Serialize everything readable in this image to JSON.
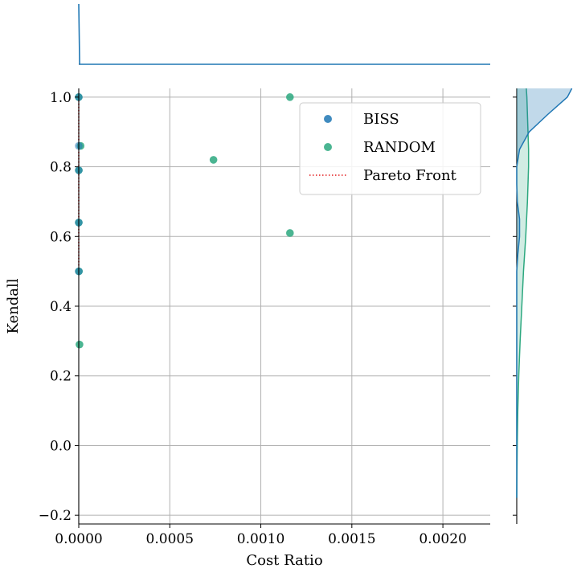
{
  "chart_data": {
    "type": "scatter",
    "xlabel": "Cost Ratio",
    "ylabel": "Kendall",
    "xlim": [
      0,
      0.00226
    ],
    "ylim": [
      -0.225,
      1.025
    ],
    "xticks": [
      0,
      0.0005,
      0.001,
      0.0015,
      0.002
    ],
    "xtick_labels": [
      "0.0000",
      "0.0005",
      "0.0010",
      "0.0015",
      "0.0020"
    ],
    "yticks": [
      -0.2,
      0.0,
      0.2,
      0.4,
      0.6,
      0.8,
      1.0
    ],
    "ytick_labels": [
      "−0.2",
      "0.0",
      "0.2",
      "0.4",
      "0.6",
      "0.8",
      "1.0"
    ],
    "grid": true,
    "legend_position": "top-right",
    "series": [
      {
        "name": "BISS",
        "color": "#1f77b4",
        "points": [
          {
            "x": 0.0,
            "y": 1.0
          },
          {
            "x": 0.0,
            "y": 0.86
          },
          {
            "x": 0.0,
            "y": 0.79
          },
          {
            "x": 0.0,
            "y": 0.64
          },
          {
            "x": 0.0,
            "y": 0.5
          }
        ]
      },
      {
        "name": "RANDOM",
        "color": "#2ca87f",
        "points": [
          {
            "x": 0.0,
            "y": 1.0
          },
          {
            "x": 1e-05,
            "y": 0.86
          },
          {
            "x": 5e-07,
            "y": 0.79
          },
          {
            "x": 2e-07,
            "y": 0.64
          },
          {
            "x": 1e-06,
            "y": 0.5
          },
          {
            "x": 4e-06,
            "y": 0.29
          },
          {
            "x": 0.00074,
            "y": 0.82
          },
          {
            "x": 0.00116,
            "y": 1.0
          },
          {
            "x": 0.00116,
            "y": 0.61
          }
        ]
      },
      {
        "name": "Pareto Front",
        "color": "#e31a1c",
        "style": "dotted",
        "points": [
          {
            "x": 0.0,
            "y": 1.0
          },
          {
            "x": 0.0,
            "y": 0.5
          }
        ]
      }
    ],
    "marginal_x": {
      "type": "density",
      "series": "BISS",
      "description_values": [
        {
          "x": 0.0,
          "density": 1.0
        },
        {
          "x": 5e-06,
          "density": 0.0
        },
        {
          "x": 0.00226,
          "density": 0.0
        }
      ]
    },
    "marginal_y": {
      "type": "density",
      "series": [
        {
          "name": "BISS",
          "fill": true,
          "values": [
            {
              "y": 1.025,
              "density": 0.98
            },
            {
              "y": 1.0,
              "density": 0.9
            },
            {
              "y": 0.95,
              "density": 0.55
            },
            {
              "y": 0.9,
              "density": 0.22
            },
            {
              "y": 0.85,
              "density": 0.05
            },
            {
              "y": 0.8,
              "density": 0.0
            },
            {
              "y": 0.75,
              "density": 0.0
            },
            {
              "y": 0.7,
              "density": 0.01
            },
            {
              "y": 0.65,
              "density": 0.05
            },
            {
              "y": 0.6,
              "density": 0.05
            },
            {
              "y": 0.55,
              "density": 0.02
            },
            {
              "y": 0.5,
              "density": 0.0
            },
            {
              "y": 0.4,
              "density": 0.0
            },
            {
              "y": 0.2,
              "density": 0.0
            },
            {
              "y": 0.0,
              "density": 0.0
            },
            {
              "y": -0.15,
              "density": 0.0
            }
          ]
        },
        {
          "name": "RANDOM",
          "fill": true,
          "values": [
            {
              "y": 1.025,
              "density": 0.17
            },
            {
              "y": 1.0,
              "density": 0.18
            },
            {
              "y": 0.95,
              "density": 0.19
            },
            {
              "y": 0.9,
              "density": 0.2
            },
            {
              "y": 0.85,
              "density": 0.21
            },
            {
              "y": 0.8,
              "density": 0.21
            },
            {
              "y": 0.75,
              "density": 0.2
            },
            {
              "y": 0.7,
              "density": 0.19
            },
            {
              "y": 0.6,
              "density": 0.16
            },
            {
              "y": 0.5,
              "density": 0.12
            },
            {
              "y": 0.4,
              "density": 0.09
            },
            {
              "y": 0.3,
              "density": 0.06
            },
            {
              "y": 0.2,
              "density": 0.035
            },
            {
              "y": 0.1,
              "density": 0.018
            },
            {
              "y": 0.0,
              "density": 0.008
            },
            {
              "y": -0.1,
              "density": 0.003
            },
            {
              "y": -0.15,
              "density": 0.0
            }
          ]
        }
      ]
    }
  }
}
